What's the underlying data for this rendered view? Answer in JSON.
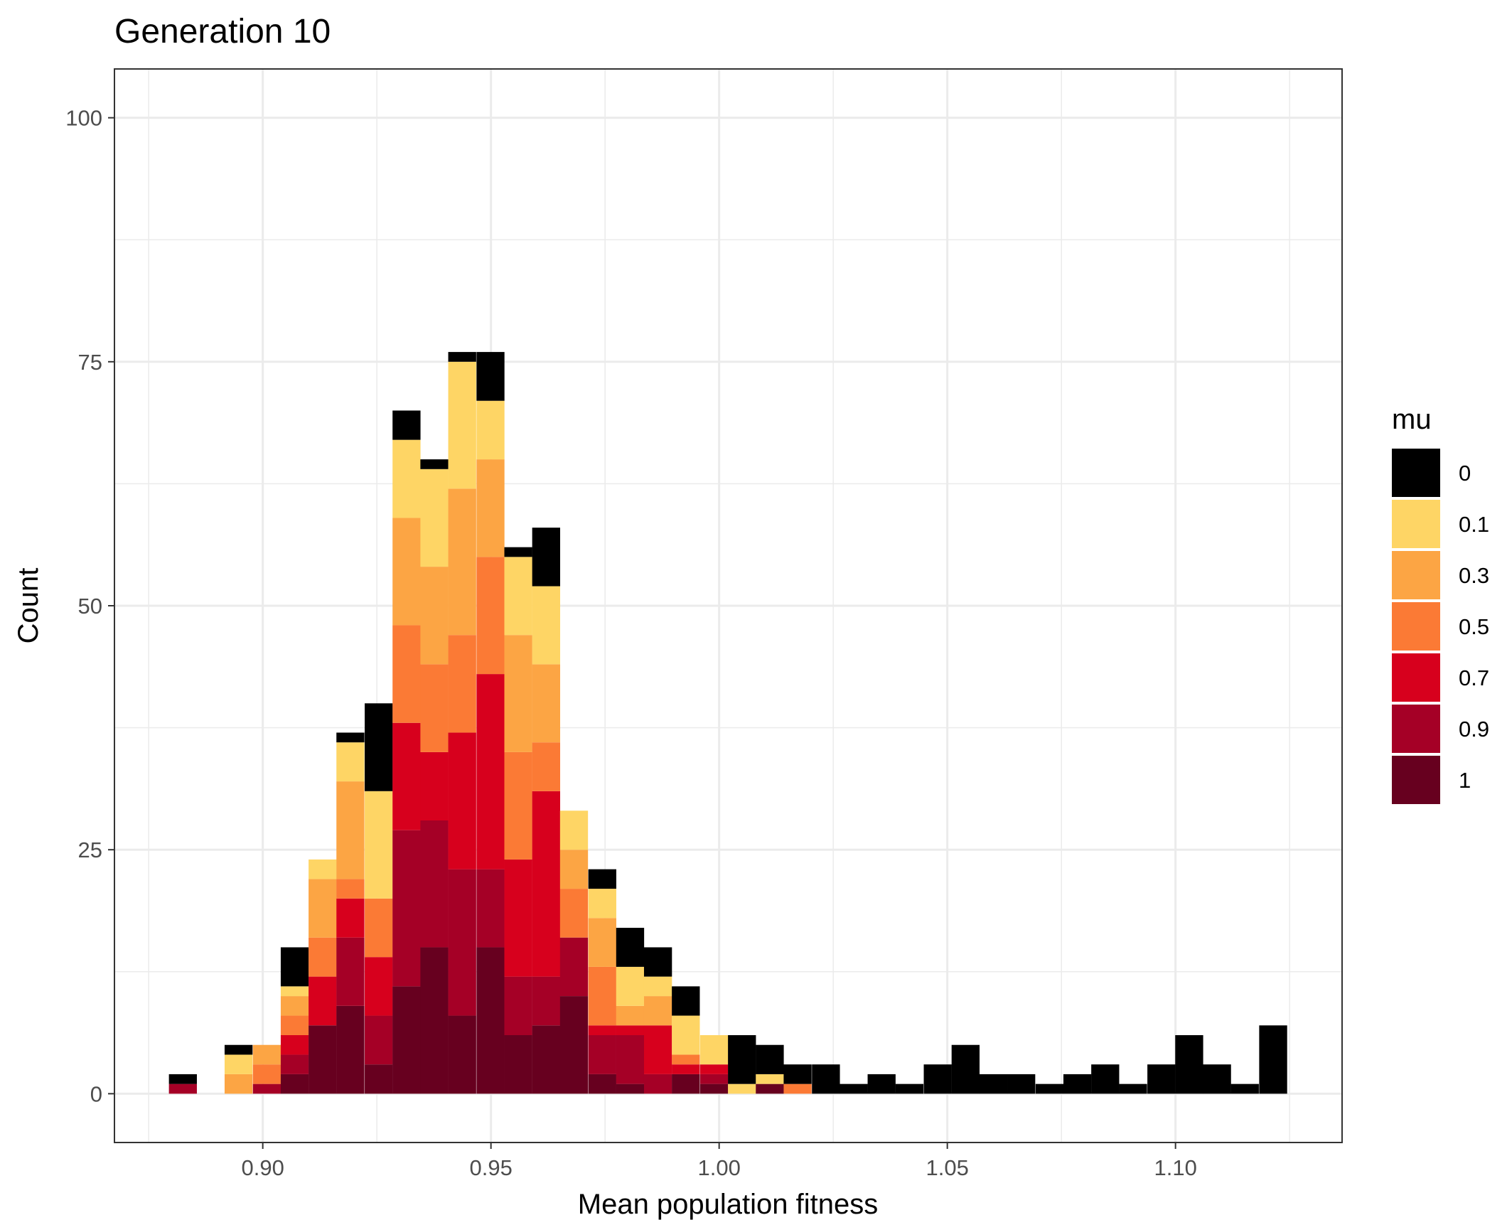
{
  "chart_data": {
    "type": "bar",
    "stacked": true,
    "title": "Generation 10",
    "xlabel": "Mean population fitness",
    "ylabel": "Count",
    "bin_width": 0.006125,
    "bin_centers": [
      0.8825,
      0.8886,
      0.8947,
      0.9009,
      0.907,
      0.9131,
      0.9192,
      0.9254,
      0.9315,
      0.9376,
      0.9437,
      0.9499,
      0.956,
      0.9621,
      0.9682,
      0.9744,
      0.9805,
      0.9866,
      0.9927,
      0.9989,
      1.005,
      1.0111,
      1.0172,
      1.0234,
      1.0295,
      1.0356,
      1.0417,
      1.0479,
      1.054,
      1.0601,
      1.0662,
      1.0724,
      1.0785,
      1.0846,
      1.0907,
      1.0969,
      1.103,
      1.1091,
      1.1152,
      1.1214
    ],
    "xlim": [
      0.8675,
      1.1365
    ],
    "ylim": [
      -5,
      105
    ],
    "x_ticks": [
      0.9,
      0.95,
      1.0,
      1.05,
      1.1
    ],
    "x_tick_labels": [
      "0.90",
      "0.95",
      "1.00",
      "1.05",
      "1.10"
    ],
    "y_ticks": [
      0,
      25,
      50,
      75,
      100
    ],
    "y_tick_labels": [
      "0",
      "25",
      "50",
      "75",
      "100"
    ],
    "grid": true,
    "legend": {
      "title": "mu",
      "position": "right"
    },
    "series": [
      {
        "name": "1",
        "color": "#67001F",
        "values": [
          0,
          0,
          0,
          0,
          2,
          7,
          9,
          3,
          11,
          15,
          8,
          15,
          6,
          7,
          10,
          2,
          1,
          0,
          2,
          1,
          0,
          1,
          0,
          0,
          0,
          0,
          0,
          0,
          0,
          0,
          0,
          0,
          0,
          0,
          0,
          0,
          0,
          0,
          0,
          0
        ]
      },
      {
        "name": "0.9",
        "color": "#A50026",
        "values": [
          1,
          0,
          0,
          1,
          2,
          0,
          7,
          5,
          16,
          13,
          15,
          8,
          6,
          5,
          6,
          4,
          5,
          2,
          0,
          1,
          0,
          0,
          0,
          0,
          0,
          0,
          0,
          0,
          0,
          0,
          0,
          0,
          0,
          0,
          0,
          0,
          0,
          0,
          0,
          0
        ]
      },
      {
        "name": "0.7",
        "color": "#D7001D",
        "values": [
          0,
          0,
          0,
          0,
          2,
          5,
          4,
          6,
          11,
          7,
          14,
          20,
          12,
          19,
          0,
          1,
          1,
          5,
          1,
          1,
          0,
          0,
          0,
          0,
          0,
          0,
          0,
          0,
          0,
          0,
          0,
          0,
          0,
          0,
          0,
          0,
          0,
          0,
          0,
          0
        ]
      },
      {
        "name": "0.5",
        "color": "#FB7A35",
        "values": [
          0,
          0,
          0,
          2,
          2,
          4,
          2,
          6,
          10,
          9,
          10,
          12,
          11,
          5,
          5,
          6,
          0,
          0,
          1,
          0,
          0,
          0,
          1,
          0,
          0,
          0,
          0,
          0,
          0,
          0,
          0,
          0,
          0,
          0,
          0,
          0,
          0,
          0,
          0,
          0
        ]
      },
      {
        "name": "0.3",
        "color": "#FCA544",
        "values": [
          0,
          0,
          2,
          2,
          2,
          6,
          10,
          0,
          11,
          10,
          15,
          10,
          12,
          8,
          4,
          5,
          2,
          3,
          0,
          0,
          0,
          0,
          0,
          0,
          0,
          0,
          0,
          0,
          0,
          0,
          0,
          0,
          0,
          0,
          0,
          0,
          0,
          0,
          0,
          0
        ]
      },
      {
        "name": "0.1",
        "color": "#FED565",
        "values": [
          0,
          0,
          2,
          0,
          1,
          2,
          4,
          11,
          8,
          10,
          13,
          6,
          8,
          8,
          4,
          3,
          4,
          2,
          4,
          3,
          1,
          1,
          0,
          0,
          0,
          0,
          0,
          0,
          0,
          0,
          0,
          0,
          0,
          0,
          0,
          0,
          0,
          0,
          0,
          0
        ]
      },
      {
        "name": "0",
        "color": "#000000",
        "values": [
          1,
          0,
          1,
          0,
          4,
          0,
          1,
          9,
          3,
          1,
          1,
          5,
          1,
          6,
          0,
          2,
          4,
          3,
          3,
          0,
          5,
          3,
          2,
          3,
          1,
          2,
          1,
          3,
          5,
          2,
          2,
          1,
          2,
          3,
          1,
          3,
          6,
          3,
          1,
          7
        ]
      }
    ],
    "legend_order": [
      "0",
      "0.1",
      "0.3",
      "0.5",
      "0.7",
      "0.9",
      "1"
    ]
  }
}
